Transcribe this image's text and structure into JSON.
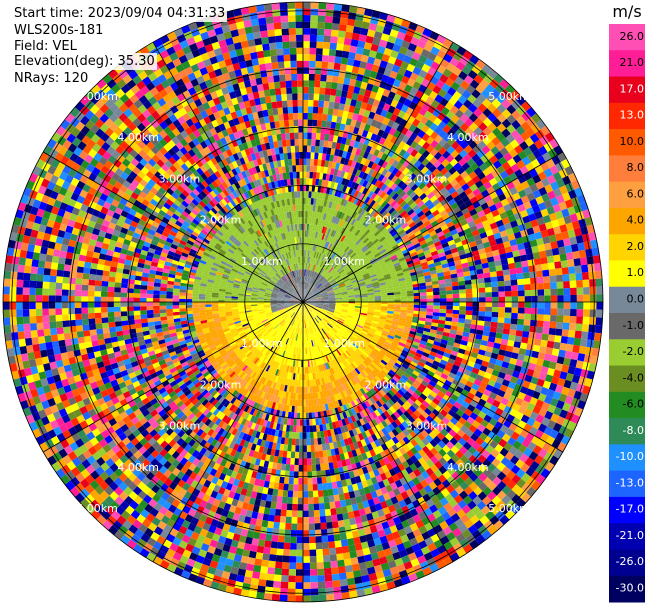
{
  "info": {
    "start_time": "Start time: 2023/09/04 04:31:33",
    "site": "WLS200s-181",
    "field": "Field: VEL",
    "elevation": "Elevation(deg): 35.30",
    "nrays": "NRays: 120"
  },
  "chart_data": {
    "type": "heatmap",
    "projection": "polar-ppi",
    "field": "VEL",
    "elevation_deg": 35.3,
    "nrays": 120,
    "range_rings_km": [
      1,
      2,
      3,
      4,
      5
    ],
    "range_ring_labels": [
      "1.00km",
      "2.00km",
      "3.00km",
      "4.00km",
      "5.00km"
    ],
    "max_range_km": 5.15,
    "colorbar": {
      "unit": "m/s",
      "ticks": [
        "26.0",
        "21.0",
        "17.0",
        "13.0",
        "10.0",
        "8.0",
        "6.0",
        "4.0",
        "2.0",
        "1.0",
        "0.0",
        "-1.0",
        "-2.0",
        "-4.0",
        "-6.0",
        "-8.0",
        "-10.0",
        "-13.0",
        "-17.0",
        "-21.0",
        "-26.0",
        "-30.0"
      ],
      "colors": [
        "#ff4fb4",
        "#ff1e96",
        "#e8001c",
        "#ff2800",
        "#ff5a00",
        "#ff7e3c",
        "#ffa040",
        "#ffa500",
        "#ffd400",
        "#ffff00",
        "#778899",
        "#696969",
        "#9acd32",
        "#6b8e23",
        "#228b22",
        "#2e8b57",
        "#1e90ff",
        "#1e64ff",
        "#0000ff",
        "#0000b0",
        "#000090",
        "#000060"
      ]
    }
  }
}
